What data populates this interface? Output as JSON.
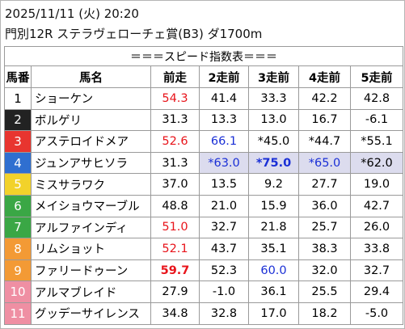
{
  "header": {
    "datetime": "2025/11/11 (火) 20:20",
    "race": "門別12R ステラヴェローチェ賞(B3) ダ1700m"
  },
  "table": {
    "title": "＝＝＝スピード指数表＝＝＝",
    "columns": [
      "馬番",
      "馬名",
      "前走",
      "2走前",
      "3走前",
      "4走前",
      "5走前"
    ],
    "rows": [
      {
        "num": "1",
        "frame": {
          "bg": "#ffffff",
          "fg": "#000000"
        },
        "name": "ショーケン",
        "cells": [
          {
            "text": "54.3",
            "color": "#e8141b"
          },
          {
            "text": "41.4"
          },
          {
            "text": "33.3"
          },
          {
            "text": "42.2"
          },
          {
            "text": "42.8"
          }
        ]
      },
      {
        "num": "2",
        "frame": {
          "bg": "#222222",
          "fg": "#ffffff"
        },
        "name": "ボルゲリ",
        "cells": [
          {
            "text": "31.3"
          },
          {
            "text": "13.3"
          },
          {
            "text": "13.0"
          },
          {
            "text": "16.7"
          },
          {
            "text": "-6.1"
          }
        ]
      },
      {
        "num": "3",
        "frame": {
          "bg": "#e8352f",
          "fg": "#ffffff"
        },
        "name": "アステロイドメア",
        "cells": [
          {
            "text": "52.6",
            "color": "#e8141b"
          },
          {
            "text": "66.1",
            "color": "#1a2fd6"
          },
          {
            "text": "*45.0"
          },
          {
            "text": "*44.7"
          },
          {
            "text": "*55.1"
          }
        ]
      },
      {
        "num": "4",
        "frame": {
          "bg": "#2f6fd0",
          "fg": "#ffffff"
        },
        "name": "ジュンアサヒソラ",
        "cells": [
          {
            "text": "31.3"
          },
          {
            "text": "*63.0",
            "color": "#1a2fd6",
            "bg": "#dcdcee"
          },
          {
            "text": "*75.0",
            "color": "#1a2fd6",
            "bold": true,
            "bg": "#dcdcee"
          },
          {
            "text": "*65.0",
            "color": "#1a2fd6",
            "bg": "#dcdcee"
          },
          {
            "text": "*62.0",
            "bg": "#dcdcee"
          }
        ]
      },
      {
        "num": "5",
        "frame": {
          "bg": "#f2d22a",
          "fg": "#ffffff"
        },
        "name": "ミスサラワク",
        "cells": [
          {
            "text": "37.0"
          },
          {
            "text": "13.5"
          },
          {
            "text": "9.2"
          },
          {
            "text": "27.7"
          },
          {
            "text": "19.0"
          }
        ]
      },
      {
        "num": "6",
        "frame": {
          "bg": "#3aa745",
          "fg": "#ffffff"
        },
        "name": "メイショウマーブル",
        "cells": [
          {
            "text": "48.8"
          },
          {
            "text": "21.0"
          },
          {
            "text": "15.9"
          },
          {
            "text": "36.0"
          },
          {
            "text": "42.7"
          }
        ]
      },
      {
        "num": "7",
        "frame": {
          "bg": "#3aa745",
          "fg": "#ffffff"
        },
        "name": "アルファインディ",
        "cells": [
          {
            "text": "51.0",
            "color": "#e8141b"
          },
          {
            "text": "32.7"
          },
          {
            "text": "21.8"
          },
          {
            "text": "25.7"
          },
          {
            "text": "26.0"
          }
        ]
      },
      {
        "num": "8",
        "frame": {
          "bg": "#f39a35",
          "fg": "#ffffff"
        },
        "name": "リムショット",
        "cells": [
          {
            "text": "52.1",
            "color": "#e8141b"
          },
          {
            "text": "43.7"
          },
          {
            "text": "35.1"
          },
          {
            "text": "38.3"
          },
          {
            "text": "33.8"
          }
        ]
      },
      {
        "num": "9",
        "frame": {
          "bg": "#f39a35",
          "fg": "#ffffff"
        },
        "name": "ファリードゥーン",
        "cells": [
          {
            "text": "59.7",
            "color": "#e8141b",
            "bold": true
          },
          {
            "text": "52.3"
          },
          {
            "text": "60.0",
            "color": "#1a2fd6"
          },
          {
            "text": "32.0"
          },
          {
            "text": "32.7"
          }
        ]
      },
      {
        "num": "10",
        "frame": {
          "bg": "#ef8fa3",
          "fg": "#ffffff"
        },
        "name": "アルマブレイド",
        "cells": [
          {
            "text": "27.9"
          },
          {
            "text": "-1.0"
          },
          {
            "text": "36.1"
          },
          {
            "text": "25.5"
          },
          {
            "text": "29.4"
          }
        ]
      },
      {
        "num": "11",
        "frame": {
          "bg": "#ef8fa3",
          "fg": "#ffffff"
        },
        "name": "グッデーサイレンス",
        "cells": [
          {
            "text": "34.8"
          },
          {
            "text": "32.8"
          },
          {
            "text": "17.0"
          },
          {
            "text": "18.2"
          },
          {
            "text": "-5.0"
          }
        ]
      }
    ]
  }
}
